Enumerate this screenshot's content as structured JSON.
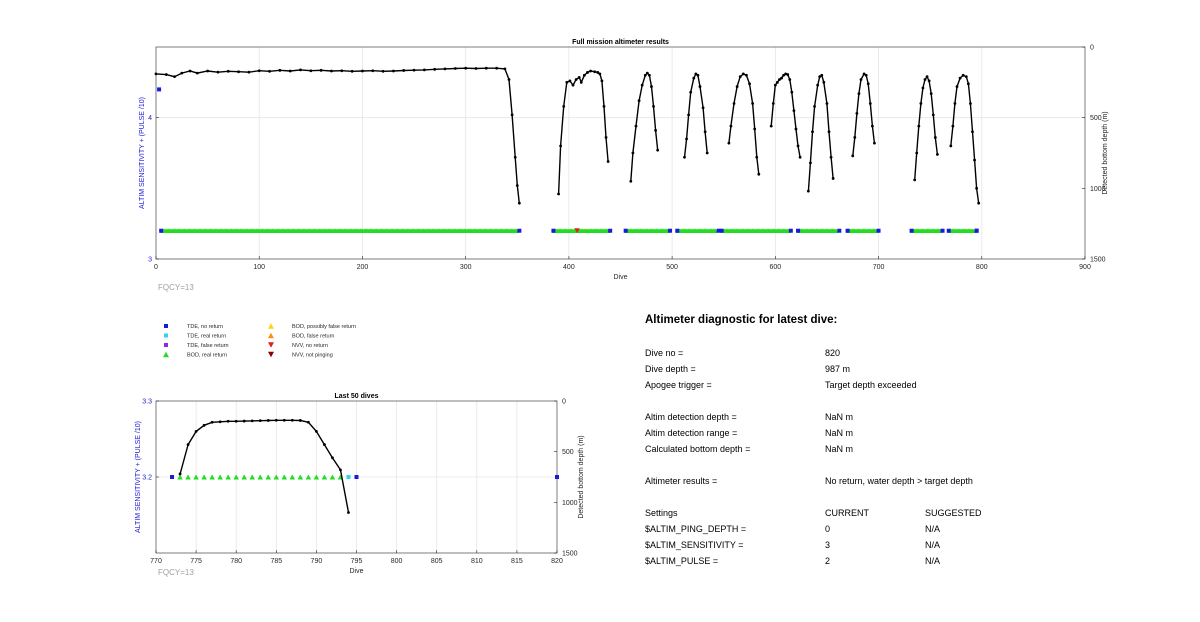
{
  "chart_data": [
    {
      "type": "scatter",
      "title": "Full mission altimeter results",
      "xlabel": "Dive",
      "ylabel_left": "ALTIM SENSITIVITY + (PULSE /10)",
      "ylabel_right": "Detected bottom depth (m)",
      "xlim": [
        0,
        900
      ],
      "ylim_left": [
        3,
        4.5
      ],
      "ylim_right": [
        0,
        1500
      ],
      "right_axis_inverted": true,
      "x_ticks": [
        0,
        100,
        200,
        300,
        400,
        500,
        600,
        700,
        800,
        900
      ],
      "y_ticks_left": [
        3,
        4
      ],
      "y_ticks_right": [
        0,
        500,
        1000,
        1500
      ],
      "grid": true,
      "annotation": "FQCY=13",
      "setting_markers": [
        {
          "x": 3,
          "y": 4.2,
          "kind": "TDE, no return"
        },
        {
          "x": 795,
          "y": 3.2,
          "kind": "TDE, no return"
        }
      ],
      "tde_segments": [
        [
          5,
          352
        ],
        [
          385,
          440
        ],
        [
          455,
          498
        ],
        [
          505,
          545
        ],
        [
          548,
          615
        ],
        [
          622,
          662
        ],
        [
          670,
          700
        ],
        [
          732,
          762
        ],
        [
          768,
          795
        ]
      ],
      "nvv_no_return": [
        408
      ],
      "depth_series": [
        [
          0,
          190
        ],
        [
          10,
          195
        ],
        [
          18,
          210
        ],
        [
          25,
          185
        ],
        [
          33,
          170
        ],
        [
          40,
          185
        ],
        [
          50,
          170
        ],
        [
          60,
          178
        ],
        [
          70,
          172
        ],
        [
          80,
          175
        ],
        [
          90,
          178
        ],
        [
          100,
          168
        ],
        [
          110,
          172
        ],
        [
          120,
          165
        ],
        [
          130,
          170
        ],
        [
          140,
          162
        ],
        [
          150,
          168
        ],
        [
          160,
          165
        ],
        [
          170,
          170
        ],
        [
          180,
          168
        ],
        [
          190,
          172
        ],
        [
          200,
          170
        ],
        [
          210,
          168
        ],
        [
          220,
          172
        ],
        [
          230,
          170
        ],
        [
          240,
          166
        ],
        [
          250,
          164
        ],
        [
          260,
          162
        ],
        [
          270,
          158
        ],
        [
          280,
          155
        ],
        [
          290,
          152
        ],
        [
          300,
          150
        ],
        [
          310,
          152
        ],
        [
          320,
          150
        ],
        [
          330,
          150
        ],
        [
          338,
          155
        ],
        [
          342,
          230
        ],
        [
          345,
          480
        ],
        [
          348,
          780
        ],
        [
          350,
          980
        ],
        [
          352,
          1105
        ],
        null,
        [
          390,
          1040
        ],
        [
          392,
          700
        ],
        [
          395,
          420
        ],
        [
          398,
          250
        ],
        [
          401,
          240
        ],
        [
          404,
          270
        ],
        [
          407,
          230
        ],
        [
          410,
          215
        ],
        [
          412,
          250
        ],
        [
          415,
          200
        ],
        [
          418,
          180
        ],
        [
          421,
          170
        ],
        [
          425,
          175
        ],
        [
          428,
          180
        ],
        [
          430,
          190
        ],
        [
          432,
          240
        ],
        [
          434,
          420
        ],
        [
          436,
          640
        ],
        [
          438,
          810
        ],
        null,
        [
          460,
          950
        ],
        [
          462,
          750
        ],
        [
          465,
          560
        ],
        [
          468,
          380
        ],
        [
          471,
          270
        ],
        [
          474,
          200
        ],
        [
          476,
          185
        ],
        [
          478,
          200
        ],
        [
          480,
          280
        ],
        [
          482,
          420
        ],
        [
          484,
          590
        ],
        [
          486,
          730
        ],
        null,
        [
          512,
          780
        ],
        [
          514,
          650
        ],
        [
          516,
          480
        ],
        [
          518,
          320
        ],
        [
          521,
          220
        ],
        [
          523,
          190
        ],
        [
          525,
          200
        ],
        [
          527,
          280
        ],
        [
          530,
          430
        ],
        [
          532,
          600
        ],
        [
          534,
          750
        ],
        null,
        [
          555,
          680
        ],
        [
          557,
          560
        ],
        [
          560,
          400
        ],
        [
          563,
          280
        ],
        [
          566,
          210
        ],
        [
          569,
          190
        ],
        [
          572,
          200
        ],
        [
          575,
          260
        ],
        [
          578,
          400
        ],
        [
          580,
          580
        ],
        [
          582,
          780
        ],
        [
          584,
          900
        ],
        null,
        [
          596,
          560
        ],
        [
          598,
          400
        ],
        [
          600,
          270
        ],
        [
          602,
          250
        ],
        [
          604,
          230
        ],
        [
          606,
          220
        ],
        [
          608,
          200
        ],
        [
          610,
          190
        ],
        [
          612,
          195
        ],
        [
          614,
          230
        ],
        [
          616,
          320
        ],
        [
          618,
          450
        ],
        [
          620,
          580
        ],
        [
          622,
          700
        ],
        [
          624,
          780
        ],
        null,
        [
          632,
          1020
        ],
        [
          634,
          820
        ],
        [
          636,
          600
        ],
        [
          638,
          420
        ],
        [
          641,
          270
        ],
        [
          643,
          210
        ],
        [
          645,
          200
        ],
        [
          647,
          250
        ],
        [
          650,
          400
        ],
        [
          652,
          600
        ],
        [
          654,
          780
        ],
        [
          656,
          930
        ],
        null,
        [
          675,
          770
        ],
        [
          677,
          640
        ],
        [
          679,
          470
        ],
        [
          681,
          330
        ],
        [
          683,
          230
        ],
        [
          686,
          190
        ],
        [
          688,
          200
        ],
        [
          690,
          260
        ],
        [
          692,
          400
        ],
        [
          694,
          560
        ],
        [
          696,
          680
        ],
        null,
        [
          735,
          940
        ],
        [
          737,
          750
        ],
        [
          739,
          560
        ],
        [
          741,
          400
        ],
        [
          743,
          290
        ],
        [
          745,
          230
        ],
        [
          747,
          210
        ],
        [
          749,
          240
        ],
        [
          751,
          330
        ],
        [
          753,
          480
        ],
        [
          755,
          640
        ],
        [
          757,
          760
        ],
        null,
        [
          770,
          700
        ],
        [
          772,
          560
        ],
        [
          774,
          400
        ],
        [
          776,
          280
        ],
        [
          779,
          220
        ],
        [
          782,
          200
        ],
        [
          785,
          210
        ],
        [
          787,
          260
        ],
        [
          789,
          400
        ],
        [
          791,
          600
        ],
        [
          793,
          800
        ],
        [
          795,
          1000
        ],
        [
          797,
          1105
        ]
      ]
    },
    {
      "type": "scatter",
      "title": "Last 50 dives",
      "xlabel": "Dive",
      "ylabel_left": "ALTIM SENSITIVITY + (PULSE /10)",
      "ylabel_right": "Detected bottom depth (m)",
      "xlim": [
        770,
        820
      ],
      "ylim_left": [
        3.1,
        3.3
      ],
      "ylim_right": [
        0,
        1500
      ],
      "right_axis_inverted": true,
      "x_ticks": [
        770,
        775,
        780,
        785,
        790,
        795,
        800,
        805,
        810,
        815,
        820
      ],
      "y_ticks_left": [
        3.2,
        3.3
      ],
      "y_ticks_right": [
        0,
        500,
        1000,
        1500
      ],
      "grid": true,
      "annotation": "FQCY=13",
      "tde_no_return": [
        772,
        795,
        820
      ],
      "tde_real_return": [
        794
      ],
      "bod_real_return": [
        773,
        774,
        775,
        776,
        777,
        778,
        779,
        780,
        781,
        782,
        783,
        784,
        785,
        786,
        787,
        788,
        789,
        790,
        791,
        792,
        793
      ],
      "depth_series": [
        [
          773,
          720
        ],
        [
          774,
          430
        ],
        [
          775,
          300
        ],
        [
          776,
          240
        ],
        [
          777,
          210
        ],
        [
          778,
          205
        ],
        [
          779,
          200
        ],
        [
          780,
          200
        ],
        [
          781,
          198
        ],
        [
          782,
          196
        ],
        [
          783,
          194
        ],
        [
          784,
          192
        ],
        [
          785,
          190
        ],
        [
          786,
          190
        ],
        [
          787,
          190
        ],
        [
          788,
          192
        ],
        [
          789,
          210
        ],
        [
          790,
          300
        ],
        [
          791,
          430
        ],
        [
          792,
          560
        ],
        [
          793,
          680
        ],
        [
          794,
          1100
        ]
      ]
    }
  ],
  "legend": [
    {
      "label": "TDE, no return",
      "shape": "square",
      "color": "#1b1bd6"
    },
    {
      "label": "TDE, real return",
      "shape": "square",
      "color": "#2ed8e8"
    },
    {
      "label": "TDE, false return",
      "shape": "square",
      "color": "#8a2be2"
    },
    {
      "label": "BOD, real return",
      "shape": "triangle-up",
      "color": "#22dd22"
    },
    {
      "label": "BOD, possibly false return",
      "shape": "triangle-up",
      "color": "#ffd11a"
    },
    {
      "label": "BOD, false return",
      "shape": "triangle-up",
      "color": "#ff8c1a"
    },
    {
      "label": "NVV, no return",
      "shape": "triangle-down",
      "color": "#e02020"
    },
    {
      "label": "NVV, not pinging",
      "shape": "triangle-down",
      "color": "#8b0000"
    }
  ],
  "diagnostic": {
    "title": "Altimeter diagnostic for latest dive:",
    "rows": [
      {
        "label": "Dive no =",
        "value": "820"
      },
      {
        "label": "Dive depth =",
        "value": "987 m"
      },
      {
        "label": "Apogee trigger =",
        "value": "Target depth exceeded"
      },
      {
        "label": "Altim detection depth =",
        "value": "NaN m"
      },
      {
        "label": "Altim detection range =",
        "value": "NaN m"
      },
      {
        "label": "Calculated bottom depth =",
        "value": "NaN m"
      },
      {
        "label": "Altimeter results =",
        "value": "No return, water depth > target depth"
      }
    ],
    "settings_header": {
      "label": "Settings",
      "current": "CURRENT",
      "suggested": "SUGGESTED"
    },
    "settings": [
      {
        "name": "$ALTIM_PING_DEPTH =",
        "current": "0",
        "suggested": "N/A"
      },
      {
        "name": "$ALTIM_SENSITIVITY =",
        "current": "3",
        "suggested": "N/A"
      },
      {
        "name": "$ALTIM_PULSE =",
        "current": "2",
        "suggested": "N/A"
      }
    ]
  }
}
